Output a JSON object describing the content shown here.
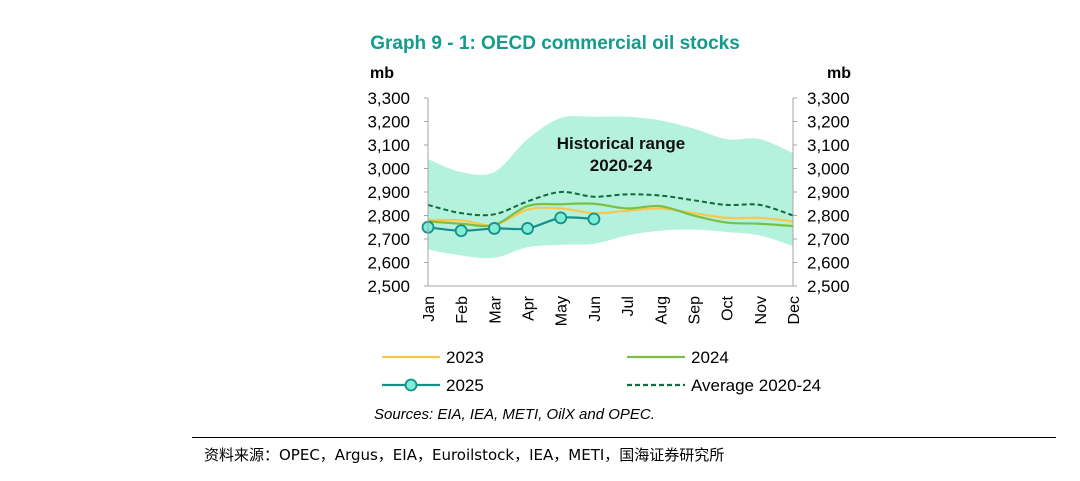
{
  "chart_data": {
    "type": "line",
    "title": "Graph 9 - 1: OECD commercial oil stocks",
    "ylabel_left": "mb",
    "ylabel_right": "mb",
    "ylim": [
      2500,
      3300
    ],
    "yticks": [
      "2,500",
      "2,600",
      "2,700",
      "2,800",
      "2,900",
      "3,000",
      "3,100",
      "3,200",
      "3,300"
    ],
    "ytick_values": [
      2500,
      2600,
      2700,
      2800,
      2900,
      3000,
      3100,
      3200,
      3300
    ],
    "categories": [
      "Jan",
      "Feb",
      "Mar",
      "Apr",
      "May",
      "Jun",
      "Jul",
      "Aug",
      "Sep",
      "Oct",
      "Nov",
      "Dec"
    ],
    "annotation": [
      "Historical range",
      "2020-24"
    ],
    "range": {
      "low": [
        2655,
        2630,
        2620,
        2665,
        2675,
        2680,
        2715,
        2735,
        2740,
        2730,
        2715,
        2670
      ],
      "high": [
        3040,
        2985,
        2985,
        3125,
        3215,
        3220,
        3220,
        3205,
        3170,
        3125,
        3125,
        3065
      ]
    },
    "series": [
      {
        "name": "2023",
        "color": "#f9c74f",
        "style": "solid",
        "values": [
          2780,
          2780,
          2760,
          2825,
          2830,
          2810,
          2820,
          2830,
          2810,
          2790,
          2790,
          2775
        ]
      },
      {
        "name": "2024",
        "color": "#7bc043",
        "style": "solid",
        "values": [
          2775,
          2765,
          2760,
          2840,
          2848,
          2850,
          2830,
          2840,
          2800,
          2770,
          2765,
          2755
        ]
      },
      {
        "name": "2025",
        "color": "#178f8a",
        "style": "solid-markers",
        "values": [
          2750,
          2735,
          2745,
          2745,
          2790,
          2785,
          null,
          null,
          null,
          null,
          null,
          null
        ]
      },
      {
        "name": "Average 2020-24",
        "color": "#0d6b3c",
        "style": "dashed",
        "values": [
          2845,
          2810,
          2805,
          2860,
          2900,
          2880,
          2890,
          2885,
          2865,
          2845,
          2845,
          2800
        ]
      }
    ],
    "range_color": "#b5f2dd",
    "grid": false,
    "legend": "bottom"
  },
  "sources": "Sources: EIA, IEA, METI, OilX and OPEC.",
  "footer": "资料来源：OPEC，Argus，EIA，Euroilstock，IEA，METI，国海证券研究所"
}
